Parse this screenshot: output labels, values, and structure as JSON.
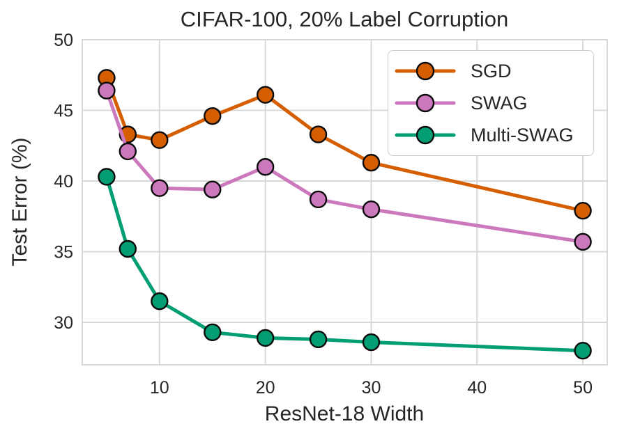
{
  "figure": {
    "background": "#ffffff",
    "text_color": "#262626",
    "grid_color": "#d5d5d5",
    "marker_edge_color": "#0a0a0a"
  },
  "chart_data": {
    "type": "line",
    "title": "CIFAR-100, 20% Label Corruption",
    "xlabel": "ResNet-18 Width",
    "ylabel": "Test Error (%)",
    "x": [
      5,
      7,
      10,
      15,
      20,
      25,
      30,
      50
    ],
    "series": [
      {
        "name": "SGD",
        "color": "#d55e00",
        "values": [
          47.3,
          43.3,
          42.9,
          44.6,
          46.1,
          43.3,
          41.3,
          37.9
        ]
      },
      {
        "name": "SWAG",
        "color": "#cc78bc",
        "values": [
          46.4,
          42.1,
          39.5,
          39.4,
          41.0,
          38.7,
          38.0,
          35.7
        ]
      },
      {
        "name": "Multi-SWAG",
        "color": "#029e73",
        "values": [
          40.3,
          35.2,
          31.5,
          29.3,
          28.9,
          28.8,
          28.6,
          28.0
        ]
      }
    ],
    "xticks": [
      10,
      20,
      30,
      40,
      50
    ],
    "yticks": [
      30,
      35,
      40,
      45,
      50
    ],
    "xlim": [
      2.7,
      52.3
    ],
    "ylim": [
      27,
      50
    ],
    "grid": true,
    "legend_position": "upper right",
    "marker": "circle"
  }
}
